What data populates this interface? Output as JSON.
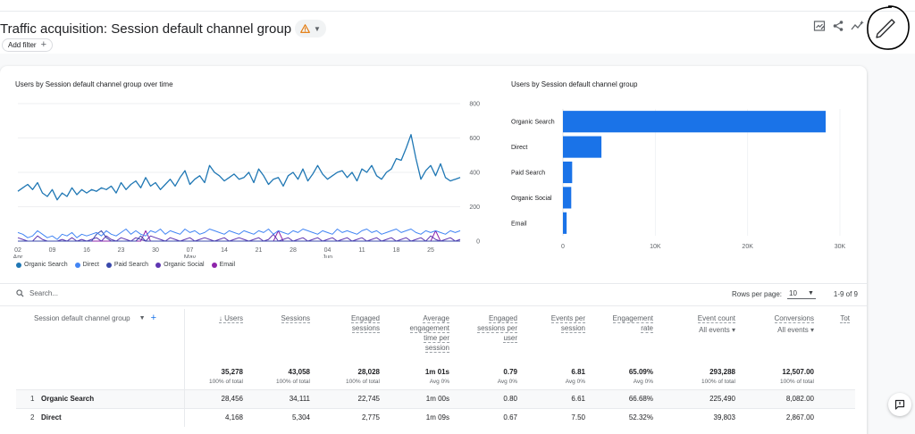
{
  "header": {
    "title": "Traffic acquisition: Session default channel group",
    "add_filter_label": "Add filter",
    "add_filter_plus": "+"
  },
  "icons": {
    "warning": "warning-icon",
    "customize_report": "customize-report-icon",
    "share": "share-icon",
    "insights": "insights-icon",
    "edit": "pencil-icon",
    "feedback": "feedback-icon"
  },
  "colors": {
    "organic_search": "#1a73e8",
    "direct": "#4285f4",
    "paid_search": "#3949ab",
    "organic_social": "#5e35b1",
    "email": "#8e24aa",
    "bar": "#1a73e8",
    "line_main": "#1f77b4"
  },
  "line_chart_title": "Users by Session default channel group over time",
  "bar_chart_title": "Users by Session default channel group",
  "chart_data": [
    {
      "type": "line",
      "title": "Users by Session default channel group over time",
      "ylim": [
        0,
        800
      ],
      "y_ticks": [
        "800",
        "600",
        "400",
        "200",
        "0"
      ],
      "y_tick_values": [
        800,
        600,
        400,
        200,
        0
      ],
      "x_ticks": [
        {
          "label": "02",
          "sub": "Apr",
          "index": 0
        },
        {
          "label": "09",
          "sub": "",
          "index": 7
        },
        {
          "label": "16",
          "sub": "",
          "index": 14
        },
        {
          "label": "23",
          "sub": "",
          "index": 21
        },
        {
          "label": "30",
          "sub": "",
          "index": 28
        },
        {
          "label": "07",
          "sub": "May",
          "index": 35
        },
        {
          "label": "14",
          "sub": "",
          "index": 42
        },
        {
          "label": "21",
          "sub": "",
          "index": 49
        },
        {
          "label": "28",
          "sub": "",
          "index": 56
        },
        {
          "label": "04",
          "sub": "Jun",
          "index": 63
        },
        {
          "label": "11",
          "sub": "",
          "index": 70
        },
        {
          "label": "18",
          "sub": "",
          "index": 77
        },
        {
          "label": "25",
          "sub": "",
          "index": 84
        }
      ],
      "n_points": 91,
      "series": [
        {
          "name": "Organic Search",
          "color": "#1f77b4",
          "values": [
            290,
            310,
            330,
            300,
            340,
            280,
            260,
            300,
            240,
            280,
            260,
            310,
            270,
            300,
            280,
            300,
            290,
            310,
            300,
            320,
            280,
            340,
            300,
            330,
            350,
            310,
            370,
            320,
            340,
            300,
            330,
            360,
            320,
            370,
            410,
            330,
            360,
            380,
            340,
            440,
            400,
            380,
            350,
            370,
            390,
            360,
            370,
            400,
            340,
            420,
            380,
            330,
            360,
            370,
            320,
            380,
            400,
            360,
            420,
            350,
            390,
            440,
            390,
            360,
            380,
            400,
            410,
            370,
            400,
            350,
            420,
            400,
            440,
            380,
            360,
            400,
            420,
            480,
            470,
            540,
            620,
            480,
            360,
            410,
            440,
            380,
            450,
            370,
            350,
            360,
            370
          ]
        },
        {
          "name": "Direct",
          "color": "#4285f4",
          "values": [
            50,
            40,
            20,
            30,
            60,
            40,
            20,
            30,
            10,
            40,
            30,
            50,
            20,
            40,
            30,
            40,
            50,
            30,
            60,
            40,
            30,
            50,
            70,
            40,
            60,
            40,
            30,
            60,
            50,
            70,
            40,
            60,
            50,
            40,
            70,
            50,
            60,
            40,
            50,
            70,
            60,
            50,
            40,
            60,
            50,
            40,
            60,
            50,
            40,
            60,
            50,
            70,
            40,
            60,
            50,
            40,
            60,
            50,
            70,
            60,
            50,
            40,
            60,
            50,
            40,
            70,
            50,
            60,
            50,
            40,
            60,
            70,
            50,
            60,
            40,
            50,
            60,
            70,
            50,
            60,
            70,
            50,
            40,
            60,
            50,
            60,
            50,
            40,
            60,
            50,
            60
          ]
        },
        {
          "name": "Paid Search",
          "color": "#3949ab",
          "values": [
            0,
            0,
            0,
            0,
            0,
            0,
            0,
            0,
            0,
            0,
            0,
            0,
            0,
            0,
            0,
            0,
            40,
            60,
            20,
            0,
            0,
            0,
            0,
            0,
            0,
            30,
            0,
            0,
            0,
            0,
            0,
            0,
            0,
            0,
            0,
            0,
            0,
            0,
            0,
            0,
            0,
            0,
            0,
            0,
            0,
            0,
            0,
            0,
            0,
            0,
            0,
            0,
            0,
            0,
            0,
            0,
            0,
            0,
            0,
            0,
            0,
            0,
            0,
            0,
            0,
            0,
            0,
            0,
            0,
            0,
            0,
            0,
            0,
            0,
            0,
            0,
            0,
            0,
            0,
            0,
            0,
            0,
            0,
            0,
            0,
            0,
            0,
            0,
            0,
            0,
            0
          ]
        },
        {
          "name": "Organic Social",
          "color": "#5e35b1",
          "values": [
            20,
            10,
            0,
            0,
            30,
            10,
            0,
            0,
            0,
            10,
            0,
            20,
            0,
            10,
            0,
            10,
            20,
            0,
            30,
            10,
            0,
            20,
            10,
            0,
            20,
            10,
            0,
            30,
            20,
            10,
            0,
            20,
            10,
            0,
            10,
            20,
            0,
            10,
            20,
            10,
            0,
            10,
            20,
            0,
            10,
            20,
            10,
            0,
            10,
            20,
            0,
            10,
            40,
            0,
            10,
            20,
            0,
            10,
            20,
            0,
            10,
            20,
            0,
            10,
            20,
            0,
            10,
            20,
            0,
            10,
            20,
            0,
            10,
            20,
            0,
            10,
            20,
            0,
            10,
            20,
            0,
            10,
            20,
            0,
            30,
            10,
            0,
            10,
            20,
            0,
            10
          ]
        },
        {
          "name": "Email",
          "color": "#8e24aa",
          "values": [
            0,
            0,
            0,
            0,
            0,
            0,
            0,
            0,
            0,
            0,
            0,
            0,
            0,
            0,
            0,
            0,
            0,
            0,
            0,
            0,
            0,
            0,
            0,
            0,
            0,
            0,
            60,
            0,
            0,
            0,
            0,
            0,
            0,
            0,
            0,
            0,
            0,
            0,
            0,
            0,
            0,
            0,
            0,
            0,
            0,
            0,
            0,
            0,
            0,
            0,
            0,
            0,
            0,
            60,
            0,
            0,
            0,
            0,
            0,
            0,
            0,
            0,
            0,
            0,
            0,
            0,
            0,
            0,
            0,
            0,
            0,
            0,
            0,
            0,
            0,
            0,
            0,
            0,
            0,
            0,
            0,
            0,
            0,
            0,
            0,
            60,
            0,
            0,
            0,
            0,
            0
          ]
        }
      ]
    },
    {
      "type": "bar",
      "orientation": "horizontal",
      "title": "Users by Session default channel group",
      "categories": [
        "Organic Search",
        "Direct",
        "Paid Search",
        "Organic Social",
        "Email"
      ],
      "values": [
        28456,
        4168,
        1000,
        900,
        400
      ],
      "xlim": [
        0,
        30000
      ],
      "x_ticks": [
        "0",
        "10K",
        "20K",
        "30K"
      ],
      "x_tick_values": [
        0,
        10000,
        20000,
        30000
      ]
    }
  ],
  "legend": [
    {
      "label": "Organic Search",
      "color": "#1f77b4"
    },
    {
      "label": "Direct",
      "color": "#4285f4"
    },
    {
      "label": "Paid Search",
      "color": "#3949ab"
    },
    {
      "label": "Organic Social",
      "color": "#5e35b1"
    },
    {
      "label": "Email",
      "color": "#8e24aa"
    }
  ],
  "table": {
    "search_placeholder": "Search...",
    "rows_per_page_label": "Rows per page:",
    "rows_per_page_value": "10",
    "range": "1-9 of 9",
    "dimension_header": "Session default channel group",
    "columns": [
      {
        "l1": "Users",
        "l2": "",
        "l3": "",
        "l4": "",
        "sort": "↓"
      },
      {
        "l1": "Sessions",
        "l2": "",
        "l3": "",
        "l4": "",
        "sort": ""
      },
      {
        "l1": "Engaged",
        "l2": "sessions",
        "l3": "",
        "l4": "",
        "sort": ""
      },
      {
        "l1": "Average",
        "l2": "engagement",
        "l3": "time per",
        "l4": "session",
        "sort": ""
      },
      {
        "l1": "Engaged",
        "l2": "sessions per",
        "l3": "user",
        "l4": "",
        "sort": ""
      },
      {
        "l1": "Events per",
        "l2": "session",
        "l3": "",
        "l4": "",
        "sort": ""
      },
      {
        "l1": "Engagement",
        "l2": "rate",
        "l3": "",
        "l4": "",
        "sort": ""
      },
      {
        "l1": "Event count",
        "l2": "",
        "l3": "",
        "l4": "",
        "sort": "",
        "sub": "All events"
      },
      {
        "l1": "Conversions",
        "l2": "",
        "l3": "",
        "l4": "",
        "sort": "",
        "sub": "All events"
      },
      {
        "l1": "Tot",
        "l2": "",
        "l3": "",
        "l4": "",
        "sort": ""
      }
    ],
    "totals": [
      {
        "value": "35,278",
        "sub": "100% of total"
      },
      {
        "value": "43,058",
        "sub": "100% of total"
      },
      {
        "value": "28,028",
        "sub": "100% of total"
      },
      {
        "value": "1m 01s",
        "sub": "Avg 0%"
      },
      {
        "value": "0.79",
        "sub": "Avg 0%"
      },
      {
        "value": "6.81",
        "sub": "Avg 0%"
      },
      {
        "value": "65.09%",
        "sub": "Avg 0%"
      },
      {
        "value": "293,288",
        "sub": "100% of total"
      },
      {
        "value": "12,507.00",
        "sub": "100% of total"
      },
      {
        "value": "",
        "sub": ""
      }
    ],
    "rows": [
      {
        "index": "1",
        "name": "Organic Search",
        "cells": [
          "28,456",
          "34,111",
          "22,745",
          "1m 00s",
          "0.80",
          "6.61",
          "66.68%",
          "225,490",
          "8,082.00",
          ""
        ]
      },
      {
        "index": "2",
        "name": "Direct",
        "cells": [
          "4,168",
          "5,304",
          "2,775",
          "1m 09s",
          "0.67",
          "7.50",
          "52.32%",
          "39,803",
          "2,867.00",
          ""
        ]
      }
    ]
  }
}
